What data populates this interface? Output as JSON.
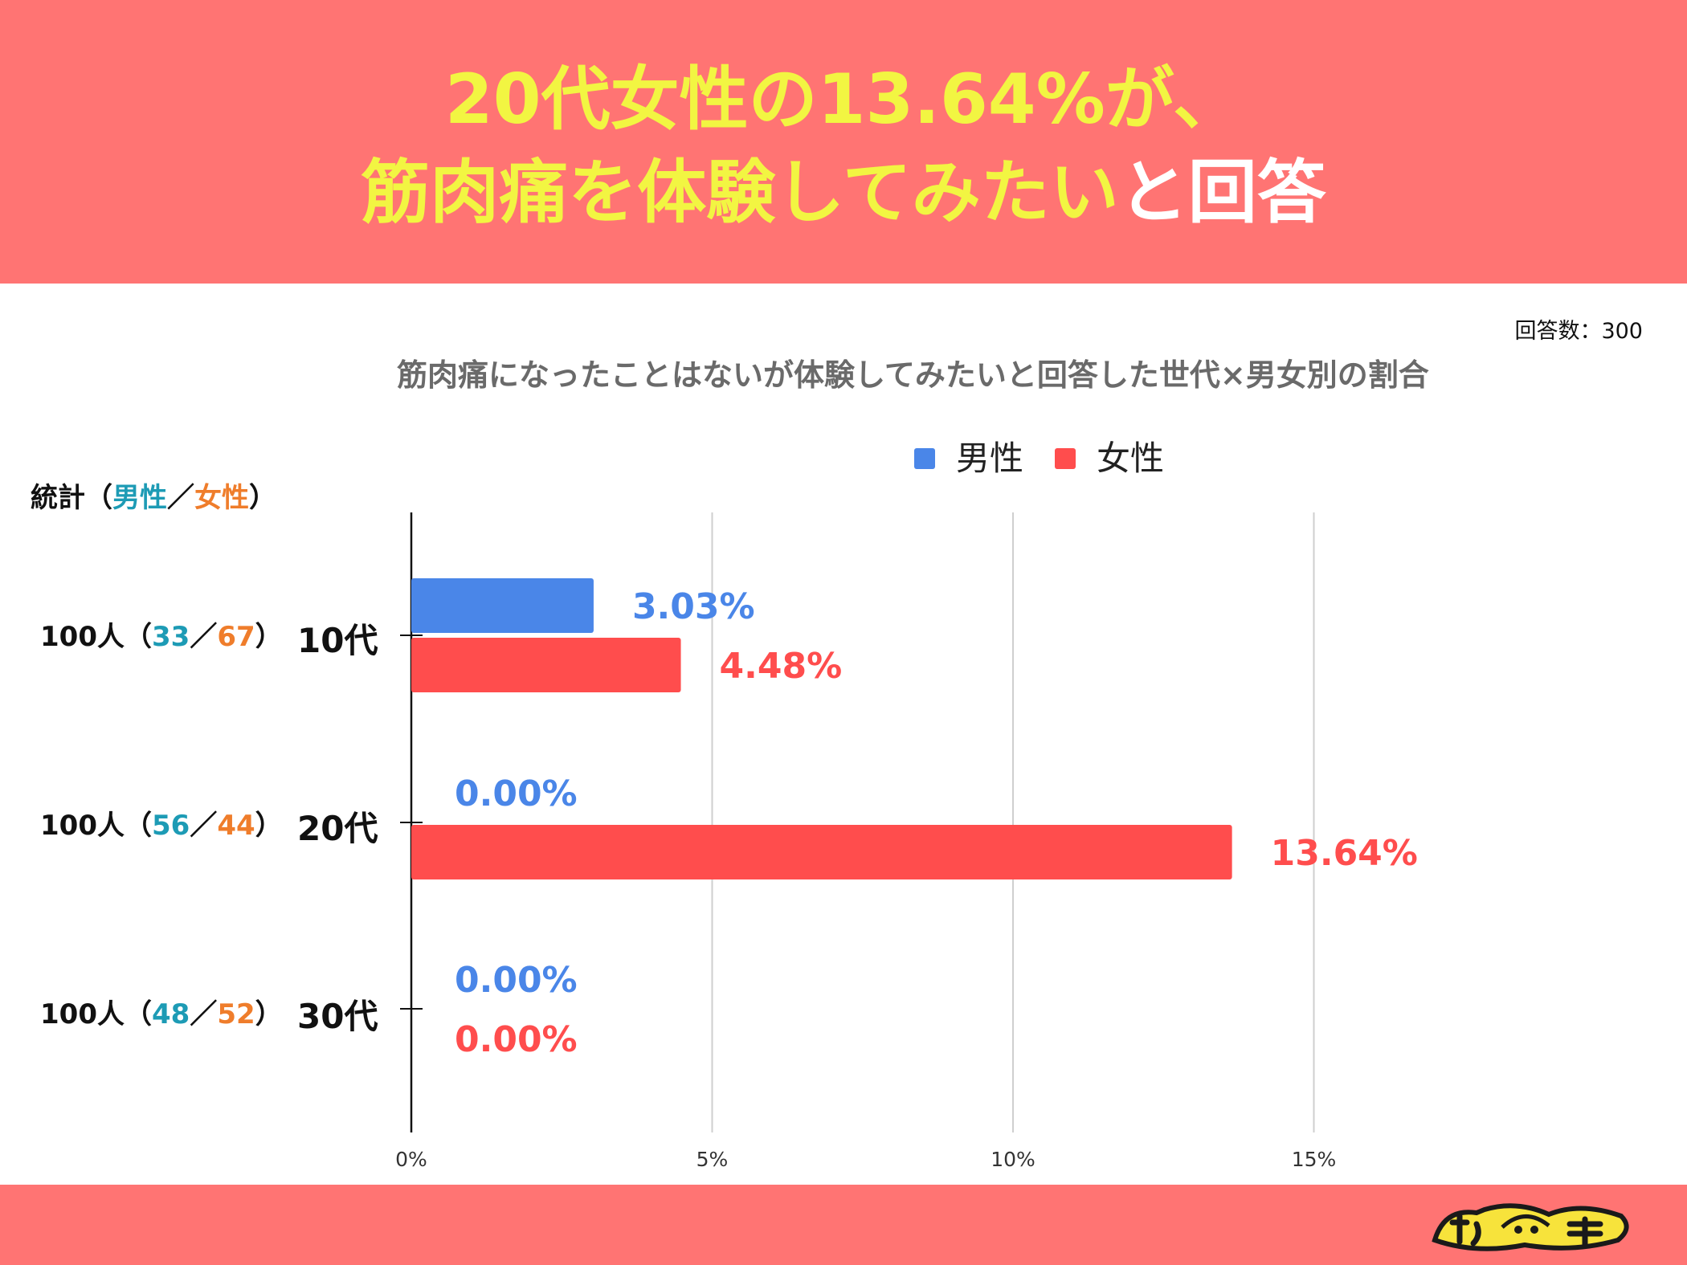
{
  "header": {
    "line1": "20代女性の13.64%が、",
    "line2_yellow": "筋肉痛を体験してみたい",
    "line2_white": "と回答"
  },
  "respondents": "回答数：300",
  "stats": {
    "header_prefix": "統計（",
    "male_label": "男性",
    "separator": "／",
    "female_label": "女性",
    "header_suffix": "）",
    "rows": [
      {
        "total": "100人（",
        "male": "33",
        "sep": "／",
        "female": "67",
        "close": "）"
      },
      {
        "total": "100人（",
        "male": "56",
        "sep": "／",
        "female": "44",
        "close": "）"
      },
      {
        "total": "100人（",
        "male": "48",
        "sep": "／",
        "female": "52",
        "close": "）"
      }
    ]
  },
  "colors": {
    "banner": "#ff7473",
    "male": "#4a86e8",
    "female": "#ff4d4d",
    "male_stat": "#1d9bb5",
    "female_stat": "#ef7d2b"
  },
  "chart_data": {
    "type": "bar",
    "orientation": "horizontal",
    "title": "筋肉痛になったことはないが体験してみたいと回答した世代×男女別の割合",
    "categories": [
      "10代",
      "20代",
      "30代"
    ],
    "series": [
      {
        "name": "男性",
        "values": [
          3.03,
          0.0,
          0.0
        ],
        "labels": [
          "3.03%",
          "0.00%",
          "0.00%"
        ],
        "color": "#4a86e8"
      },
      {
        "name": "女性",
        "values": [
          4.48,
          13.64,
          0.0
        ],
        "labels": [
          "4.48%",
          "13.64%",
          "0.00%"
        ],
        "color": "#ff4d4d"
      }
    ],
    "xlim": [
      0,
      15
    ],
    "xticks": [
      0,
      5,
      10,
      15
    ],
    "xtick_labels": [
      "0%",
      "5%",
      "10%",
      "15%"
    ],
    "grid": true,
    "legend": "top"
  },
  "logo": {
    "text": "サウナイッチ",
    "icon": "sauna-mascot-icon"
  }
}
